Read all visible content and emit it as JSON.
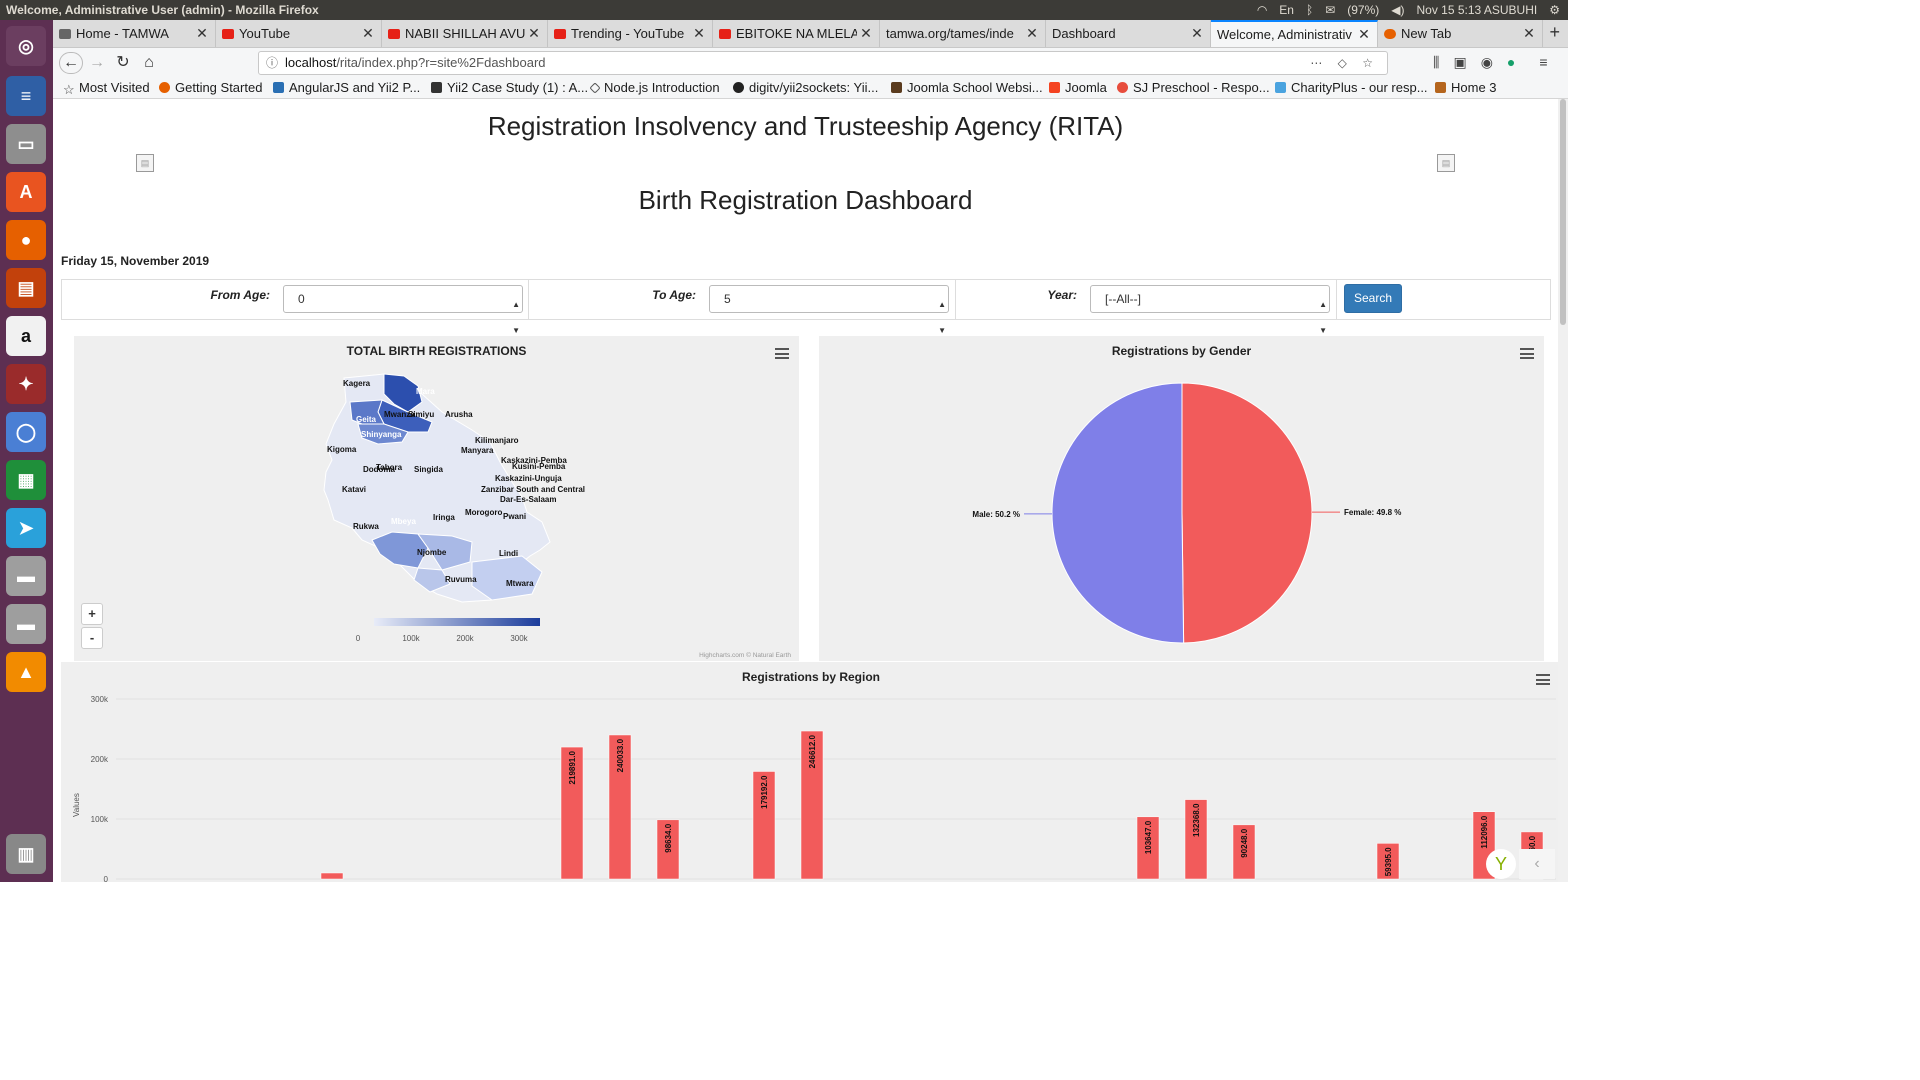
{
  "system": {
    "window_title": "Welcome, Administrative User (admin) - Mozilla Firefox",
    "tray": [
      "En",
      "(97%)",
      "Nov 15  5:13 ASUBUHI"
    ]
  },
  "browser": {
    "tabs": [
      {
        "label": "Home - TAMWA"
      },
      {
        "label": "YouTube"
      },
      {
        "label": "NABII SHILLAH AVUNJA"
      },
      {
        "label": "Trending - YouTube"
      },
      {
        "label": "EBITOKE NA MLELA"
      },
      {
        "label": "tamwa.org/tames/inde"
      },
      {
        "label": "Dashboard"
      },
      {
        "label": "Welcome, Administrativ"
      },
      {
        "label": "New Tab"
      }
    ],
    "url_host": "localhost",
    "url_path": "/rita/index.php?r=site%2Fdashboard",
    "bookmarks": [
      "Most Visited",
      "Getting Started",
      "AngularJS and Yii2 P...",
      "Yii2 Case Study (1) : A...",
      "Node.js Introduction",
      "digitv/yii2sockets: Yii...",
      "Joomla School Websi...",
      "Joomla",
      "SJ Preschool - Respo...",
      "CharityPlus - our resp...",
      "Home 3"
    ]
  },
  "page": {
    "agency_title": "Registration Insolvency and Trusteeship Agency (RITA)",
    "dashboard_title": "Birth Registration Dashboard",
    "date": "Friday 15, November 2019",
    "filters": {
      "from_age_label": "From Age:",
      "from_age_value": "0",
      "to_age_label": "To Age:",
      "to_age_value": "5",
      "year_label": "Year:",
      "year_value": "[--All--]",
      "search_label": "Search"
    }
  },
  "map": {
    "title": "TOTAL BIRTH REGISTRATIONS",
    "zoom_in": "+",
    "zoom_out": "-",
    "legend_ticks": [
      "0",
      "100k",
      "200k",
      "300k"
    ],
    "credits": "Highcharts.com © Natural Earth",
    "regions": [
      "Kagera",
      "Mara",
      "Mwanza",
      "Simiyu",
      "Arusha",
      "Geita",
      "Shinyanga",
      "Kilimanjaro",
      "Manyara",
      "Kigoma",
      "Dodoma",
      "Tabora",
      "Singida",
      "Katavi",
      "Rukwa",
      "Mbeya",
      "Iringa",
      "Morogoro",
      "Pwani",
      "Njombe",
      "Lindi",
      "Ruvuma",
      "Mtwara",
      "Kaskazini-Pemba",
      "Kusini-Pemba",
      "Kaskazini-Unguja",
      "Zanzibar South and Central",
      "Dar-Es-Salaam"
    ]
  },
  "chart_data": [
    {
      "type": "pie",
      "title": "Registrations by Gender",
      "labels": [
        "Male",
        "Female"
      ],
      "values": [
        50.2,
        49.8
      ],
      "unit": "%",
      "colors": [
        "#7f7fe8",
        "#f25b5b"
      ]
    },
    {
      "type": "bar",
      "title": "Registrations by Region",
      "ylabel": "Values",
      "ylim": [
        0,
        300000
      ],
      "yticks": [
        "0",
        "100k",
        "200k",
        "300k"
      ],
      "color": "#f25b5b",
      "values": [
        0,
        0,
        0,
        0,
        10000,
        0,
        0,
        0,
        0,
        219891.0,
        240033.0,
        98634.0,
        0,
        179192.0,
        246612.0,
        0,
        0,
        0,
        0,
        0,
        0,
        103647.0,
        132368.0,
        90248.0,
        0,
        0,
        59395.0,
        0,
        112096.0,
        78460.0
      ],
      "data_labels": [
        "",
        "",
        "",
        "",
        "",
        "",
        "",
        "",
        "",
        "219891.0",
        "240033.0",
        "98634.0",
        "",
        "179192.0",
        "246612.0",
        "",
        "",
        "",
        "",
        "",
        "",
        "103647.0",
        "132368.0",
        "90248.0",
        "",
        "",
        "59395.0",
        "",
        "112096.0",
        "78460.0"
      ]
    }
  ]
}
